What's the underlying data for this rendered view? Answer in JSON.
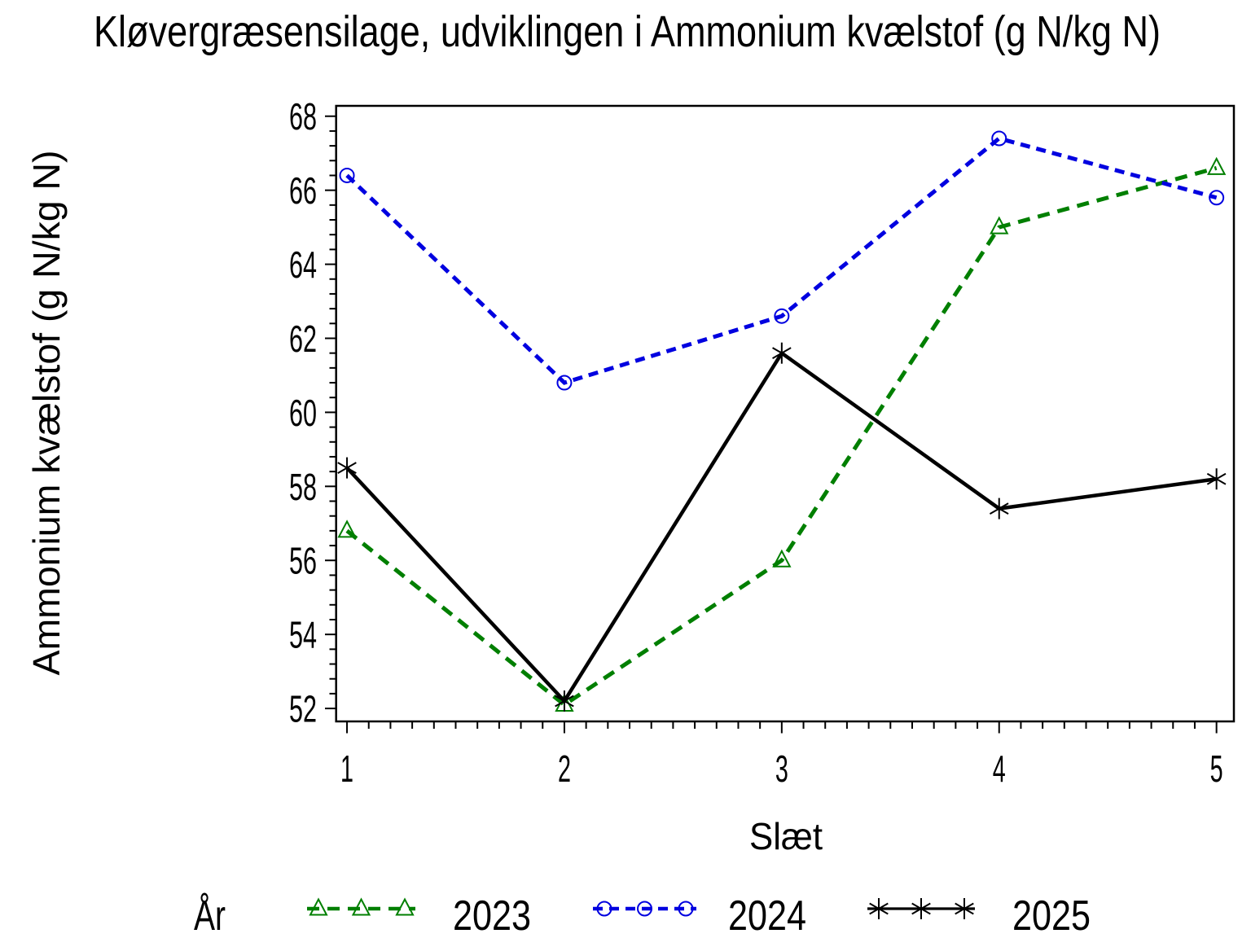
{
  "title": "Kløvergræsensilage, udviklingen i Ammonium kvælstof (g N/kg N)",
  "chart_data": {
    "type": "line",
    "title": "Kløvergræsensilage, udviklingen i Ammonium kvælstof (g N/kg N)",
    "xlabel": "Slæt",
    "ylabel": "Ammonium kvælstof (g N/kg N)",
    "x": [
      1,
      2,
      3,
      4,
      5
    ],
    "xlim": [
      0.95,
      5.08
    ],
    "ylim": [
      51.65,
      68.28
    ],
    "x_major_ticks": [
      1,
      2,
      3,
      4,
      5
    ],
    "x_minor_step": 0.1,
    "y_major_ticks": [
      52,
      54,
      56,
      58,
      60,
      62,
      64,
      66,
      68
    ],
    "y_minor_step": 0.4,
    "grid": false,
    "legend_title": "År",
    "legend_position": "bottom",
    "series": [
      {
        "name": "2023",
        "color": "#007F00",
        "marker": "triangle",
        "line": "dashed",
        "dash": "15,10",
        "values": [
          56.8,
          52.1,
          56.0,
          65.0,
          66.6
        ]
      },
      {
        "name": "2024",
        "color": "#0000E0",
        "marker": "circle",
        "line": "dashed",
        "dash": "12,8",
        "values": [
          66.4,
          60.8,
          62.6,
          67.4,
          65.8
        ]
      },
      {
        "name": "2025",
        "color": "#000000",
        "marker": "star",
        "line": "solid",
        "dash": "",
        "values": [
          58.5,
          52.2,
          61.6,
          57.4,
          58.2
        ]
      }
    ]
  }
}
